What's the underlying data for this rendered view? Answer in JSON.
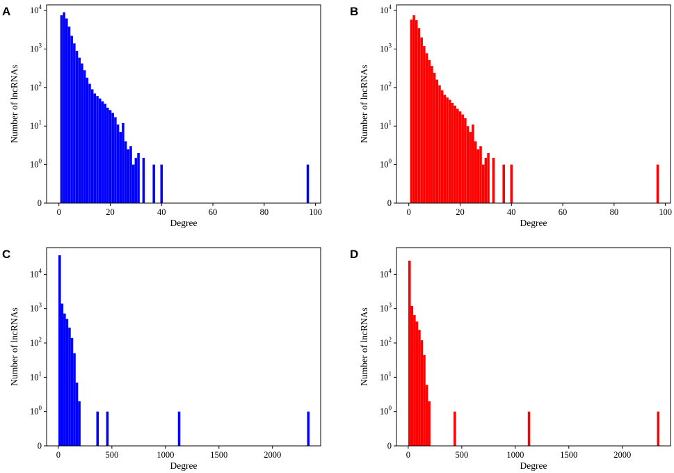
{
  "chart_data": [
    {
      "panel": "A",
      "type": "bar",
      "color": "#0000ff",
      "xlabel": "Degree",
      "ylabel": "Number of lncRNAs",
      "yscale": "symlog",
      "xlim": [
        -4.8,
        102
      ],
      "ylim": [
        0,
        14000
      ],
      "xticks": [
        0,
        20,
        40,
        60,
        80,
        100
      ],
      "yticks": [
        "0",
        "10^0",
        "10^1",
        "10^2",
        "10^3",
        "10^4"
      ],
      "bin_width": 0.96,
      "bins": [
        [
          1,
          7500
        ],
        [
          2,
          9000
        ],
        [
          3,
          6200
        ],
        [
          4,
          3800
        ],
        [
          5,
          2200
        ],
        [
          6,
          1400
        ],
        [
          7,
          900
        ],
        [
          8,
          600
        ],
        [
          9,
          420
        ],
        [
          10,
          280
        ],
        [
          11,
          180
        ],
        [
          12,
          125
        ],
        [
          13,
          90
        ],
        [
          14,
          70
        ],
        [
          15,
          60
        ],
        [
          16,
          52
        ],
        [
          17,
          44
        ],
        [
          18,
          38
        ],
        [
          19,
          30
        ],
        [
          20,
          26
        ],
        [
          21,
          22
        ],
        [
          22,
          17
        ],
        [
          23,
          11
        ],
        [
          24,
          7
        ],
        [
          25,
          12
        ],
        [
          26,
          4
        ],
        [
          27,
          2.5
        ],
        [
          28,
          3
        ],
        [
          29,
          1
        ],
        [
          30,
          1.5
        ],
        [
          31,
          2
        ],
        [
          33,
          1.5
        ],
        [
          37,
          1
        ],
        [
          40,
          1
        ],
        [
          97,
          1
        ]
      ]
    },
    {
      "panel": "B",
      "type": "bar",
      "color": "#ff0000",
      "xlabel": "Degree",
      "ylabel": "Number of lncRNAs",
      "yscale": "symlog",
      "xlim": [
        -4.8,
        102
      ],
      "ylim": [
        0,
        14000
      ],
      "xticks": [
        0,
        20,
        40,
        60,
        80,
        100
      ],
      "yticks": [
        "0",
        "10^0",
        "10^1",
        "10^2",
        "10^3",
        "10^4"
      ],
      "bin_width": 0.96,
      "bins": [
        [
          1,
          5800
        ],
        [
          2,
          7500
        ],
        [
          3,
          5600
        ],
        [
          4,
          3500
        ],
        [
          5,
          2000
        ],
        [
          6,
          1200
        ],
        [
          7,
          780
        ],
        [
          8,
          520
        ],
        [
          9,
          360
        ],
        [
          10,
          240
        ],
        [
          11,
          160
        ],
        [
          12,
          115
        ],
        [
          13,
          85
        ],
        [
          14,
          65
        ],
        [
          15,
          55
        ],
        [
          16,
          48
        ],
        [
          17,
          40
        ],
        [
          18,
          34
        ],
        [
          19,
          28
        ],
        [
          20,
          24
        ],
        [
          21,
          20
        ],
        [
          22,
          16
        ],
        [
          23,
          10
        ],
        [
          24,
          7
        ],
        [
          25,
          11
        ],
        [
          26,
          4
        ],
        [
          27,
          2.5
        ],
        [
          28,
          3
        ],
        [
          29,
          1
        ],
        [
          30,
          1.5
        ],
        [
          31,
          2
        ],
        [
          33,
          1.5
        ],
        [
          37,
          1
        ],
        [
          40,
          1
        ],
        [
          97,
          1
        ]
      ]
    },
    {
      "panel": "C",
      "type": "bar",
      "color": "#0000ff",
      "xlabel": "Degree",
      "ylabel": "Number of lncRNAs",
      "yscale": "symlog",
      "xlim": [
        -110,
        2450
      ],
      "ylim": [
        0,
        60000
      ],
      "xticks": [
        0,
        500,
        1000,
        1500,
        2000
      ],
      "yticks": [
        "0",
        "10^0",
        "10^1",
        "10^2",
        "10^3",
        "10^4"
      ],
      "bin_width": 23,
      "bins": [
        [
          12,
          36000
        ],
        [
          35,
          1400
        ],
        [
          58,
          720
        ],
        [
          81,
          500
        ],
        [
          104,
          280
        ],
        [
          127,
          140
        ],
        [
          150,
          50
        ],
        [
          173,
          7
        ],
        [
          196,
          2
        ],
        [
          366,
          1
        ],
        [
          458,
          1
        ],
        [
          1128,
          1
        ],
        [
          2335,
          1
        ]
      ]
    },
    {
      "panel": "D",
      "type": "bar",
      "color": "#ff0000",
      "xlabel": "Degree",
      "ylabel": "Number of lncRNAs",
      "yscale": "symlog",
      "xlim": [
        -110,
        2450
      ],
      "ylim": [
        0,
        60000
      ],
      "xticks": [
        0,
        500,
        1000,
        1500,
        2000
      ],
      "yticks": [
        "0",
        "10^0",
        "10^1",
        "10^2",
        "10^3",
        "10^4"
      ],
      "bin_width": 23,
      "bins": [
        [
          12,
          25000
        ],
        [
          35,
          1200
        ],
        [
          58,
          650
        ],
        [
          81,
          420
        ],
        [
          104,
          240
        ],
        [
          127,
          120
        ],
        [
          150,
          45
        ],
        [
          173,
          6
        ],
        [
          196,
          2
        ],
        [
          435,
          1
        ],
        [
          1128,
          1
        ],
        [
          2335,
          1
        ]
      ]
    }
  ]
}
